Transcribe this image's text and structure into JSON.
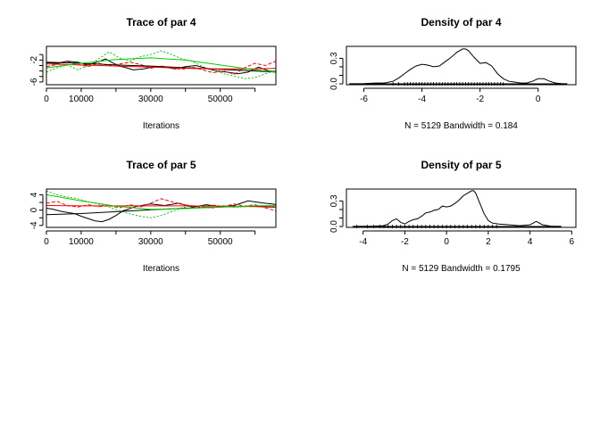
{
  "chart_data": [
    {
      "type": "line",
      "title": "Trace of par 4",
      "xlabel": "Iterations",
      "ylabel": "",
      "xlim": [
        0,
        66000
      ],
      "ylim": [
        -6.5,
        0.5
      ],
      "xticks": [
        0,
        10000,
        30000,
        50000
      ],
      "xtick_labels": [
        "0",
        "10000",
        "30000",
        "50000"
      ],
      "xticks_minor": [
        20000,
        40000,
        60000
      ],
      "yticks": [
        -6,
        -2
      ],
      "ytick_labels": [
        "-6",
        "-2"
      ],
      "yticks_minor": [
        -5,
        -4,
        -3,
        -1
      ],
      "series": [
        {
          "color": "#000000",
          "dash": "",
          "x": [
            0,
            3000,
            6000,
            9000,
            12000,
            15000,
            17000,
            19000,
            21000,
            23000,
            25000,
            28000,
            31000,
            34000,
            37000,
            40000,
            43000,
            46000,
            49000,
            52000,
            55000,
            58000,
            61000,
            64000,
            66000
          ],
          "values": [
            -2.5,
            -2.6,
            -2.2,
            -2.4,
            -2.9,
            -2.3,
            -1.8,
            -2.5,
            -3.1,
            -3.4,
            -3.8,
            -3.6,
            -3.2,
            -3.3,
            -3.6,
            -3.2,
            -3.0,
            -3.5,
            -4.0,
            -4.2,
            -4.5,
            -4.2,
            -3.3,
            -4.0,
            -4.1
          ]
        },
        {
          "color": "#ff0000",
          "dash": "4,2",
          "x": [
            0,
            3000,
            6000,
            9000,
            12000,
            15000,
            18000,
            21000,
            24000,
            27000,
            30000,
            33000,
            36000,
            39000,
            42000,
            45000,
            48000,
            51000,
            54000,
            57000,
            60000,
            63000,
            66000
          ],
          "values": [
            -3.2,
            -2.8,
            -2.3,
            -2.8,
            -3.2,
            -2.6,
            -3.0,
            -2.7,
            -2.4,
            -2.8,
            -3.5,
            -3.1,
            -3.4,
            -3.7,
            -3.3,
            -3.8,
            -4.3,
            -4.0,
            -4.6,
            -3.4,
            -2.6,
            -3.0,
            -2.2
          ]
        },
        {
          "color": "#00cd00",
          "dash": "2,2",
          "x": [
            0,
            3000,
            6000,
            9000,
            12000,
            15000,
            18000,
            21000,
            24000,
            27000,
            30000,
            33000,
            36000,
            39000,
            42000,
            45000,
            48000,
            51000,
            54000,
            57000,
            60000,
            63000,
            66000
          ],
          "values": [
            -4.2,
            -3.4,
            -2.9,
            -3.8,
            -3.0,
            -1.8,
            -0.5,
            -1.6,
            -2.2,
            -1.4,
            -1.0,
            -0.3,
            -1.0,
            -1.8,
            -2.2,
            -3.2,
            -3.8,
            -4.5,
            -4.9,
            -5.4,
            -5.2,
            -4.5,
            -3.8
          ]
        },
        {
          "color": "#000000",
          "dash": "",
          "x": [
            0,
            10000,
            20000,
            30000,
            40000,
            50000,
            60000,
            66000
          ],
          "values": [
            -2.4,
            -2.6,
            -2.9,
            -3.1,
            -3.4,
            -3.7,
            -4.0,
            -4.2
          ]
        },
        {
          "color": "#ff0000",
          "dash": "",
          "x": [
            0,
            10000,
            20000,
            30000,
            40000,
            50000,
            60000,
            66000
          ],
          "values": [
            -2.7,
            -2.9,
            -3.1,
            -3.3,
            -3.5,
            -3.6,
            -3.6,
            -3.5
          ]
        },
        {
          "color": "#00cd00",
          "dash": "",
          "x": [
            0,
            10000,
            20000,
            30000,
            40000,
            50000,
            60000,
            66000
          ],
          "values": [
            -3.4,
            -2.6,
            -1.9,
            -1.6,
            -2.0,
            -2.9,
            -3.8,
            -4.2
          ]
        }
      ]
    },
    {
      "type": "line",
      "title": "Density of par 4",
      "xlabel": "N = 5129   Bandwidth = 0.184",
      "ylabel": "",
      "xlim": [
        -6.6,
        1.3
      ],
      "ylim": [
        -0.01,
        0.44
      ],
      "xticks": [
        -6,
        -4,
        -2,
        0
      ],
      "xtick_labels": [
        "-6",
        "-4",
        "-2",
        "0"
      ],
      "yticks": [
        0.0,
        0.3
      ],
      "ytick_labels": [
        "0.0",
        "0.3"
      ],
      "yticks_minor": [
        0.1,
        0.2
      ],
      "series": [
        {
          "color": "#000000",
          "dash": "",
          "x": [
            -6.5,
            -6.0,
            -5.6,
            -5.3,
            -5.0,
            -4.8,
            -4.6,
            -4.4,
            -4.2,
            -4.0,
            -3.8,
            -3.6,
            -3.4,
            -3.2,
            -3.0,
            -2.8,
            -2.6,
            -2.5,
            -2.4,
            -2.2,
            -2.0,
            -1.8,
            -1.6,
            -1.4,
            -1.2,
            -1.0,
            -0.8,
            -0.6,
            -0.4,
            -0.2,
            0.0,
            0.2,
            0.4,
            0.6,
            0.8,
            1.0
          ],
          "values": [
            0.002,
            0.003,
            0.01,
            0.01,
            0.03,
            0.07,
            0.12,
            0.17,
            0.21,
            0.23,
            0.22,
            0.2,
            0.21,
            0.26,
            0.31,
            0.37,
            0.41,
            0.41,
            0.39,
            0.31,
            0.24,
            0.25,
            0.21,
            0.12,
            0.06,
            0.03,
            0.02,
            0.01,
            0.01,
            0.03,
            0.06,
            0.06,
            0.03,
            0.01,
            0.004,
            0.002
          ]
        }
      ],
      "rug": [
        -5.0,
        -4.8,
        -4.6,
        -4.5,
        -4.4,
        -4.3,
        -4.2,
        -4.1,
        -4.0,
        -3.9,
        -3.8,
        -3.7,
        -3.6,
        -3.5,
        -3.4,
        -3.3,
        -3.2,
        -3.1,
        -3.0,
        -2.9,
        -2.8,
        -2.7,
        -2.6,
        -2.5,
        -2.4,
        -2.3,
        -2.2,
        -2.1,
        -2.0,
        -1.9,
        -1.8,
        -1.7,
        -1.6,
        -1.5,
        -1.4,
        -1.3,
        -1.2
      ]
    },
    {
      "type": "line",
      "title": "Trace of par 5",
      "xlabel": "Iterations",
      "ylabel": "",
      "xlim": [
        0,
        66000
      ],
      "ylim": [
        -4.5,
        5.5
      ],
      "xticks": [
        0,
        10000,
        30000,
        50000
      ],
      "xtick_labels": [
        "0",
        "10000",
        "30000",
        "50000"
      ],
      "xticks_minor": [
        20000,
        40000,
        60000
      ],
      "yticks": [
        -4,
        0,
        4
      ],
      "ytick_labels": [
        "-4",
        "0",
        "4"
      ],
      "yticks_minor": [
        -2,
        2
      ],
      "series": [
        {
          "color": "#000000",
          "dash": "",
          "x": [
            0,
            2000,
            4000,
            6000,
            8000,
            10000,
            12000,
            14000,
            16000,
            18000,
            20000,
            22000,
            26000,
            30000,
            34000,
            38000,
            42000,
            46000,
            50000,
            54000,
            58000,
            62000,
            66000
          ],
          "values": [
            0.5,
            0.2,
            -0.3,
            -0.6,
            -0.9,
            -1.6,
            -2.2,
            -2.8,
            -3.0,
            -2.4,
            -1.4,
            -0.2,
            1.0,
            1.6,
            1.2,
            1.8,
            0.8,
            1.4,
            0.9,
            1.2,
            2.4,
            1.9,
            1.5
          ]
        },
        {
          "color": "#ff0000",
          "dash": "4,2",
          "x": [
            0,
            3000,
            6000,
            9000,
            12000,
            15000,
            18000,
            21000,
            24000,
            27000,
            30000,
            33000,
            36000,
            39000,
            42000,
            45000,
            48000,
            51000,
            54000,
            57000,
            60000,
            63000,
            66000
          ],
          "values": [
            1.8,
            2.3,
            1.2,
            0.8,
            1.4,
            0.9,
            1.2,
            0.6,
            1.4,
            0.8,
            1.8,
            3.0,
            2.2,
            1.5,
            1.1,
            0.7,
            1.3,
            0.9,
            1.6,
            1.0,
            1.4,
            0.6,
            -0.2
          ]
        },
        {
          "color": "#00cd00",
          "dash": "2,2",
          "x": [
            0,
            3000,
            6000,
            9000,
            12000,
            15000,
            18000,
            21000,
            24000,
            27000,
            30000,
            33000,
            36000,
            39000,
            42000,
            45000,
            48000,
            51000,
            54000,
            57000,
            60000,
            63000,
            66000
          ],
          "values": [
            5.0,
            4.0,
            3.4,
            3.0,
            2.2,
            1.6,
            0.8,
            -0.2,
            -1.0,
            -1.6,
            -2.0,
            -1.4,
            -0.4,
            0.6,
            1.2,
            0.8,
            0.5,
            1.2,
            0.8,
            0.9,
            1.3,
            0.8,
            1.1
          ]
        },
        {
          "color": "#000000",
          "dash": "",
          "x": [
            0,
            10000,
            20000,
            30000,
            40000,
            50000,
            60000,
            66000
          ],
          "values": [
            -1.2,
            -0.9,
            -0.4,
            0.1,
            0.5,
            0.8,
            1.0,
            1.1
          ]
        },
        {
          "color": "#ff0000",
          "dash": "",
          "x": [
            0,
            10000,
            20000,
            30000,
            40000,
            50000,
            60000,
            66000
          ],
          "values": [
            1.2,
            1.1,
            1.1,
            1.1,
            1.1,
            1.0,
            0.9,
            0.7
          ]
        },
        {
          "color": "#00cd00",
          "dash": "",
          "x": [
            0,
            10000,
            20000,
            30000,
            40000,
            50000,
            60000,
            66000
          ],
          "values": [
            4.0,
            2.4,
            1.0,
            0.2,
            0.4,
            0.8,
            1.1,
            1.2
          ]
        }
      ]
    },
    {
      "type": "line",
      "title": "Density of par 5",
      "xlabel": "N = 5129   Bandwidth = 0.1795",
      "ylabel": "",
      "xlim": [
        -4.8,
        6.2
      ],
      "ylim": [
        -0.01,
        0.44
      ],
      "xticks": [
        -4,
        -2,
        0,
        2,
        4,
        6
      ],
      "xtick_labels": [
        "-4",
        "-2",
        "0",
        "2",
        "4",
        "6"
      ],
      "yticks": [
        0.0,
        0.3
      ],
      "ytick_labels": [
        "0.0",
        "0.3"
      ],
      "yticks_minor": [
        0.1,
        0.2
      ],
      "series": [
        {
          "color": "#000000",
          "dash": "",
          "x": [
            -4.5,
            -4.0,
            -3.5,
            -3.0,
            -2.8,
            -2.6,
            -2.4,
            -2.2,
            -2.0,
            -1.8,
            -1.6,
            -1.4,
            -1.2,
            -1.0,
            -0.8,
            -0.6,
            -0.4,
            -0.2,
            0.0,
            0.2,
            0.4,
            0.6,
            0.8,
            1.0,
            1.2,
            1.3,
            1.4,
            1.6,
            1.8,
            2.0,
            2.2,
            2.5,
            3.0,
            3.5,
            4.0,
            4.3,
            4.6,
            5.0,
            5.5
          ],
          "values": [
            0.002,
            0.003,
            0.005,
            0.01,
            0.03,
            0.07,
            0.09,
            0.05,
            0.03,
            0.06,
            0.08,
            0.09,
            0.12,
            0.16,
            0.17,
            0.19,
            0.2,
            0.24,
            0.23,
            0.24,
            0.27,
            0.31,
            0.36,
            0.39,
            0.42,
            0.42,
            0.39,
            0.27,
            0.15,
            0.07,
            0.04,
            0.03,
            0.02,
            0.01,
            0.02,
            0.06,
            0.02,
            0.005,
            0.002
          ]
        }
      ],
      "rug": [
        -4.3,
        -3.8,
        -3.5,
        -3.2,
        -3.0,
        -2.8,
        -2.6,
        -2.4,
        -2.2,
        -2.0,
        -1.8,
        -1.6,
        -1.4,
        -1.2,
        -1.0,
        -0.8,
        -0.6,
        -0.4,
        -0.2,
        0.0,
        0.2,
        0.4,
        0.6,
        0.8,
        1.0,
        1.2,
        1.4,
        1.6,
        1.8,
        2.0,
        2.2,
        2.4
      ]
    }
  ]
}
